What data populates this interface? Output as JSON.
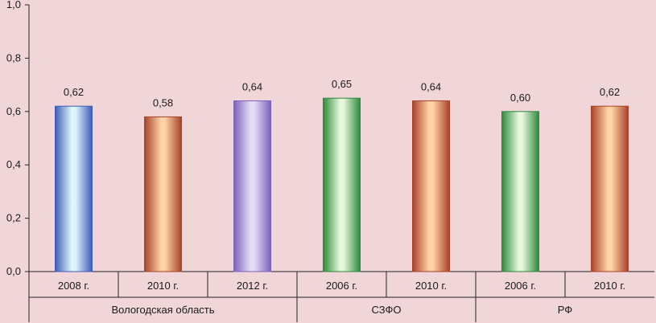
{
  "chart_data": {
    "type": "bar",
    "categories": [
      "2008 г.",
      "2010 г.",
      "2012 г.",
      "2006 г.",
      "2010 г.",
      "2006 г.",
      "2010 г."
    ],
    "groups": [
      {
        "label": "Вологодская область",
        "count": 3
      },
      {
        "label": "СЗФО",
        "count": 2
      },
      {
        "label": "РФ",
        "count": 2
      }
    ],
    "values": [
      0.62,
      0.58,
      0.64,
      0.65,
      0.64,
      0.6,
      0.62
    ],
    "value_labels": [
      "0,62",
      "0,58",
      "0,64",
      "0,65",
      "0,64",
      "0,60",
      "0,62"
    ],
    "bar_colors": [
      [
        "#3f5bb5",
        "#dff6ff"
      ],
      [
        "#a8432b",
        "#ffd3a6"
      ],
      [
        "#7d62bd",
        "#e4dcf4"
      ],
      [
        "#2e8a3a",
        "#e6f7de"
      ],
      [
        "#a8432b",
        "#ffd3a6"
      ],
      [
        "#2e8a3a",
        "#e6f7de"
      ],
      [
        "#a8432b",
        "#ffd3a6"
      ]
    ],
    "ylim": [
      0,
      1.0
    ],
    "yticks": [
      0.0,
      0.2,
      0.4,
      0.6,
      0.8,
      1.0
    ],
    "ytick_labels": [
      "0,0",
      "0,2",
      "0,4",
      "0,6",
      "0,8",
      "1,0"
    ],
    "grid": false,
    "title": "",
    "xlabel": "",
    "ylabel": "",
    "background": "#f0d6d8"
  }
}
